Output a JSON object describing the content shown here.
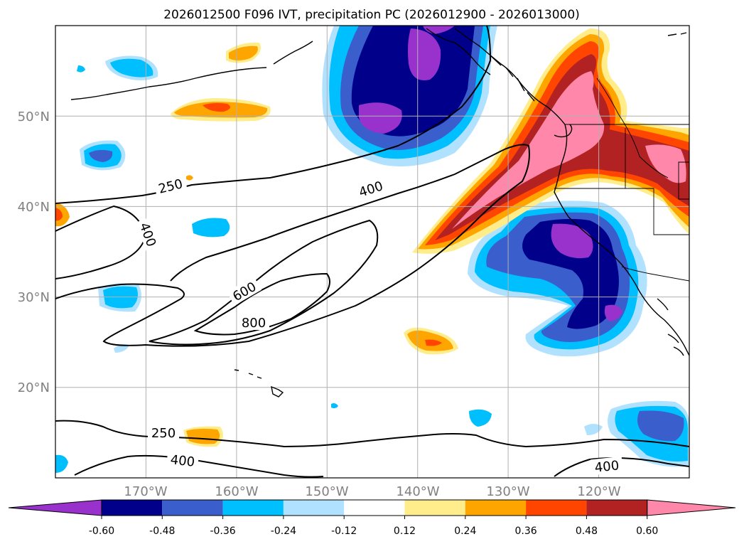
{
  "title": "2026012500 F096 IVT, precipitation PC (2026012900 - 2026013000)",
  "map": {
    "lon_range": [
      -180,
      -110
    ],
    "lat_range": [
      10,
      60
    ],
    "lon_ticks": [
      -170,
      -160,
      -150,
      -140,
      -130,
      -120
    ],
    "lat_ticks": [
      20,
      30,
      40,
      50
    ],
    "lon_tick_labels": [
      "170°W",
      "160°W",
      "150°W",
      "140°W",
      "130°W",
      "120°W"
    ],
    "lat_tick_labels": [
      "20°N",
      "30°N",
      "40°N",
      "50°N"
    ],
    "tick_label_color": "#808080"
  },
  "ivt_contour_labels": [
    {
      "text": "250",
      "lon": -162.5,
      "lat": 42.2
    },
    {
      "text": "400",
      "lon": -146.1,
      "lat": 41.8
    },
    {
      "text": "400",
      "lon": -160.0,
      "lat": 37.4
    },
    {
      "text": "600",
      "lon": -151.5,
      "lat": 30.9
    },
    {
      "text": "800",
      "lon": -151.9,
      "lat": 27.2
    },
    {
      "text": "250",
      "lon": -162.0,
      "lat": 15.0
    },
    {
      "text": "400",
      "lon": -161.0,
      "lat": 12.0
    },
    {
      "text": "400",
      "lon": -121.0,
      "lat": 11.4
    }
  ],
  "colorbar": {
    "levels": [
      "-0.60",
      "-0.48",
      "-0.36",
      "-0.24",
      "-0.12",
      "0.12",
      "0.24",
      "0.36",
      "0.48",
      "0.60"
    ],
    "colors": [
      "#9932cc",
      "#00008b",
      "#3a5fcd",
      "#00bfff",
      "#b0e2ff",
      "#ffffff",
      "#ffec8b",
      "#ffa500",
      "#ff4500",
      "#b22222",
      "#ff88aa"
    ]
  }
}
